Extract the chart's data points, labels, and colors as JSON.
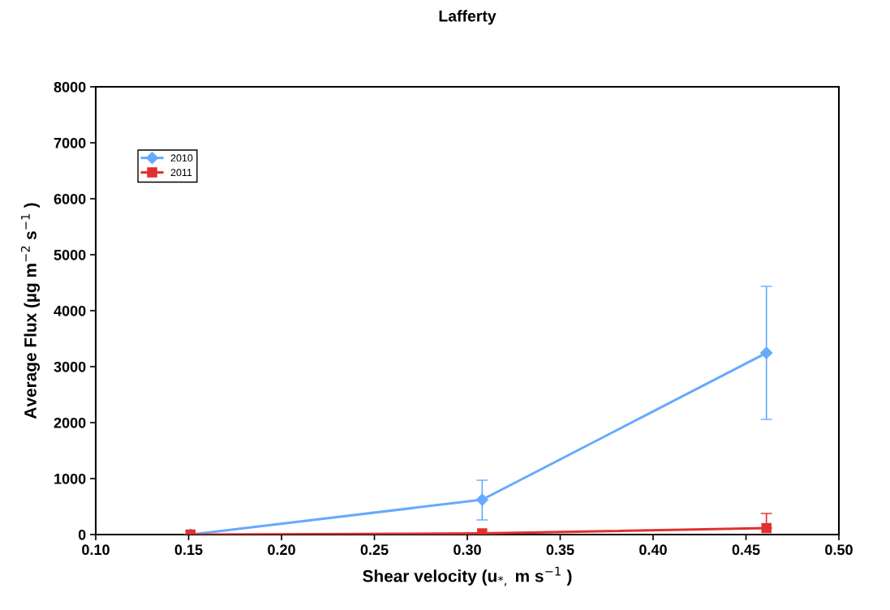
{
  "chart_data": {
    "type": "line",
    "title": "Lafferty",
    "xlabel": "Shear velocity (u$_{*,}$ m s$^{−1}$ )",
    "ylabel": "Average Flux (µg m$^{−2}$ s$^{−1}$ )",
    "x": [
      0.151,
      0.308,
      0.461
    ],
    "series": [
      {
        "name": "2010",
        "color": "#66aaff",
        "marker": "diamond",
        "values": [
          0,
          623,
          3246
        ],
        "errors": [
          null,
          [
            261,
            971
          ],
          [
            2058,
            4435
          ]
        ]
      },
      {
        "name": "2011",
        "color": "#e03030",
        "marker": "square",
        "values": [
          0,
          20,
          116
        ],
        "errors": [
          null,
          null,
          [
            116,
            377
          ]
        ]
      }
    ],
    "xlim": [
      0.1,
      0.5
    ],
    "xticks": [
      {
        "value": 0.1,
        "label": "0.10"
      },
      {
        "value": 0.15,
        "label": "0.15"
      },
      {
        "value": 0.2,
        "label": "0.20"
      },
      {
        "value": 0.25,
        "label": "0.25"
      },
      {
        "value": 0.3,
        "label": "0.30"
      },
      {
        "value": 0.35,
        "label": "0.35"
      },
      {
        "value": 0.4,
        "label": "0.40"
      },
      {
        "value": 0.45,
        "label": "0.45"
      },
      {
        "value": 0.5,
        "label": "0.50"
      }
    ],
    "ylim": [
      0,
      8000
    ],
    "yticks": [
      0,
      1000,
      2000,
      3000,
      4000,
      5000,
      6000,
      7000,
      8000
    ],
    "grid": false,
    "legend": "top left",
    "line_style": "solid"
  }
}
